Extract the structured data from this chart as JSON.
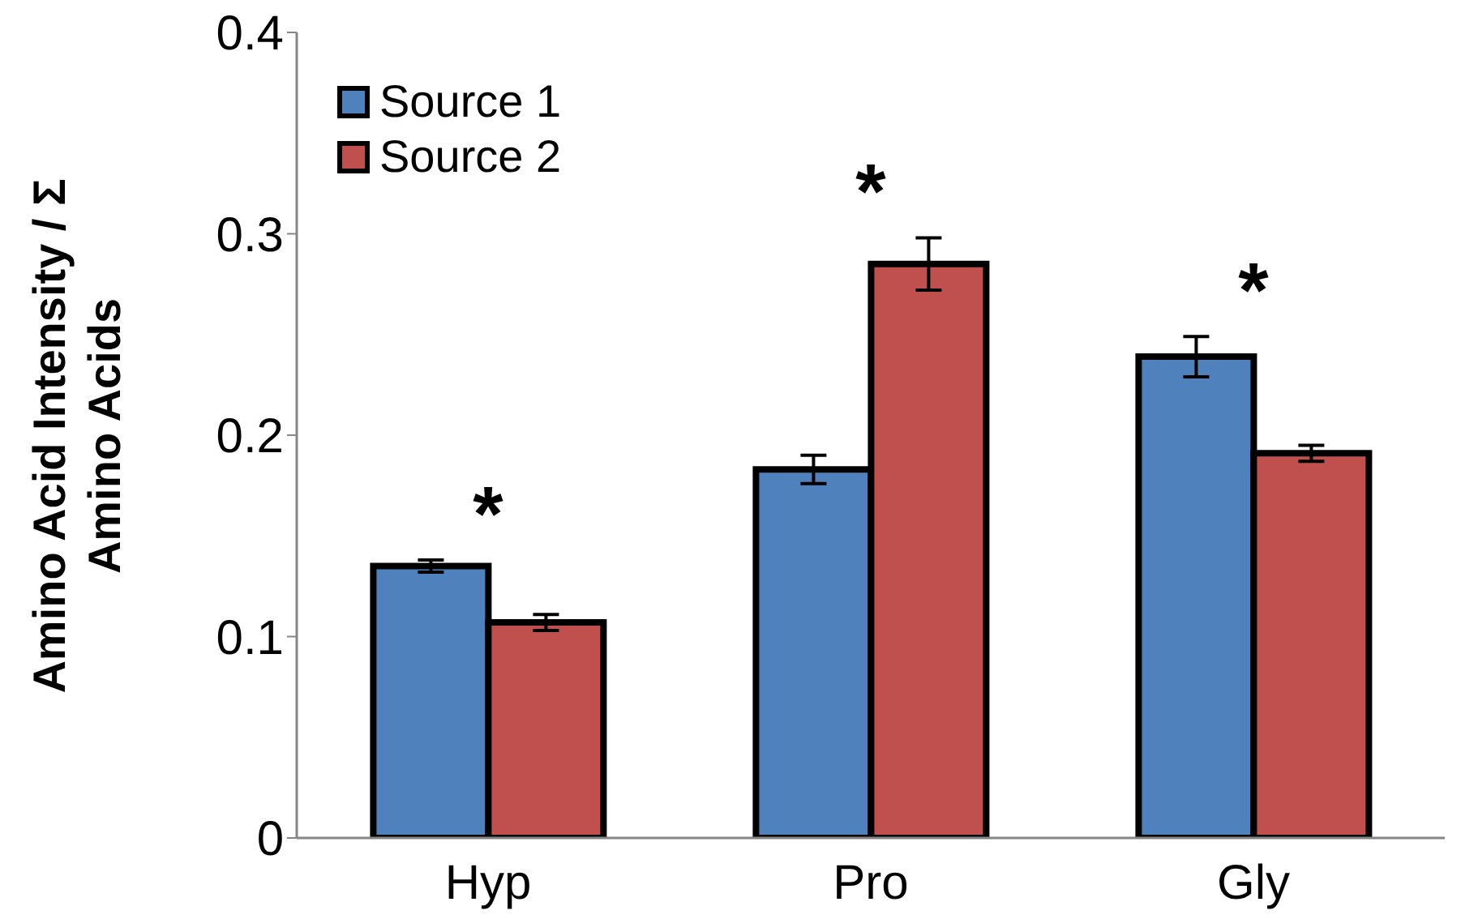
{
  "chart_data": {
    "type": "bar",
    "ylabel": "Amino Acid Intensity / Σ\nAmino Acids",
    "categories": [
      "Hyp",
      "Pro",
      "Gly"
    ],
    "series": [
      {
        "name": "Source 1",
        "color": "#4f81bd",
        "values": [
          0.135,
          0.183,
          0.239
        ],
        "errors": [
          0.003,
          0.007,
          0.01
        ]
      },
      {
        "name": "Source 2",
        "color": "#c0504d",
        "values": [
          0.107,
          0.285,
          0.191
        ],
        "errors": [
          0.004,
          0.013,
          0.004
        ]
      }
    ],
    "ylim": [
      0,
      0.4
    ],
    "yticks": [
      0,
      0.1,
      0.2,
      0.3,
      0.4
    ],
    "grid": false,
    "legend": "top left",
    "annotations": [
      "*",
      "*",
      "*"
    ]
  }
}
